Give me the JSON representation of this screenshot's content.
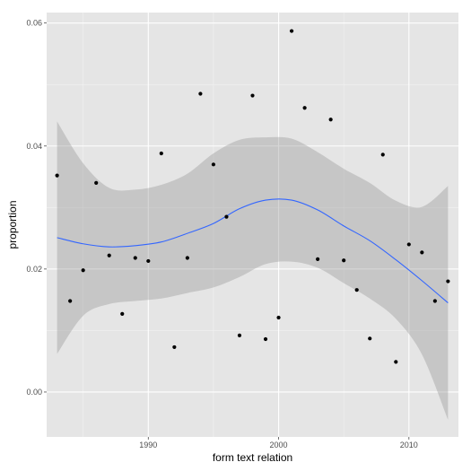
{
  "colors": {
    "panel": "#e5e5e5",
    "grid_major": "#ffffff",
    "grid_minor": "#f2f2f2",
    "ribbon": "#999999",
    "smooth_line": "#3366ff",
    "points": "#000000"
  },
  "chart_data": {
    "type": "scatter",
    "title": "",
    "xlabel": "form text relation",
    "ylabel": "proportion",
    "xlim": [
      1982.2,
      2013.8
    ],
    "ylim": [
      -0.0073,
      0.0617
    ],
    "x_ticks": [
      1990,
      2000,
      2010
    ],
    "x_tick_labels": [
      "1990",
      "2000",
      "2010"
    ],
    "y_ticks": [
      0,
      0.02,
      0.04,
      0.06
    ],
    "y_tick_labels": [
      "0.00",
      "0.02",
      "0.04",
      "0.06"
    ],
    "grid": true,
    "legend": "none",
    "points": [
      {
        "x": 1983,
        "y": 0.0352
      },
      {
        "x": 1984,
        "y": 0.0148
      },
      {
        "x": 1985,
        "y": 0.0198
      },
      {
        "x": 1986,
        "y": 0.034
      },
      {
        "x": 1987,
        "y": 0.0222
      },
      {
        "x": 1988,
        "y": 0.0127
      },
      {
        "x": 1989,
        "y": 0.0218
      },
      {
        "x": 1990,
        "y": 0.0213
      },
      {
        "x": 1991,
        "y": 0.0388
      },
      {
        "x": 1992,
        "y": 0.0073
      },
      {
        "x": 1993,
        "y": 0.0218
      },
      {
        "x": 1994,
        "y": 0.0485
      },
      {
        "x": 1995,
        "y": 0.037
      },
      {
        "x": 1996,
        "y": 0.0285
      },
      {
        "x": 1997,
        "y": 0.0092
      },
      {
        "x": 1998,
        "y": 0.0482
      },
      {
        "x": 1999,
        "y": 0.0086
      },
      {
        "x": 2000,
        "y": 0.0121
      },
      {
        "x": 2001,
        "y": 0.0587
      },
      {
        "x": 2002,
        "y": 0.0462
      },
      {
        "x": 2003,
        "y": 0.0216
      },
      {
        "x": 2004,
        "y": 0.0443
      },
      {
        "x": 2005,
        "y": 0.0214
      },
      {
        "x": 2006,
        "y": 0.0166
      },
      {
        "x": 2007,
        "y": 0.0087
      },
      {
        "x": 2008,
        "y": 0.0386
      },
      {
        "x": 2009,
        "y": 0.0049
      },
      {
        "x": 2010,
        "y": 0.024
      },
      {
        "x": 2011,
        "y": 0.0227
      },
      {
        "x": 2012,
        "y": 0.0148
      },
      {
        "x": 2013,
        "y": 0.018
      }
    ],
    "smooth": {
      "x": [
        1983,
        1985,
        1987,
        1989,
        1991,
        1993,
        1995,
        1997,
        1999,
        2001,
        2003,
        2005,
        2007,
        2009,
        2011,
        2013
      ],
      "y": [
        0.0251,
        0.0241,
        0.0236,
        0.0238,
        0.0244,
        0.0258,
        0.0274,
        0.0298,
        0.0312,
        0.0312,
        0.0296,
        0.027,
        0.0246,
        0.0215,
        0.0181,
        0.0145
      ],
      "upper": [
        0.044,
        0.0372,
        0.0332,
        0.0329,
        0.0337,
        0.0355,
        0.0388,
        0.041,
        0.0414,
        0.0412,
        0.039,
        0.0363,
        0.034,
        0.0311,
        0.0301,
        0.0335
      ],
      "lower": [
        0.0062,
        0.0124,
        0.0143,
        0.0148,
        0.0152,
        0.0161,
        0.017,
        0.0187,
        0.0208,
        0.0212,
        0.0202,
        0.0177,
        0.0152,
        0.0119,
        0.0061,
        -0.0045
      ]
    }
  }
}
